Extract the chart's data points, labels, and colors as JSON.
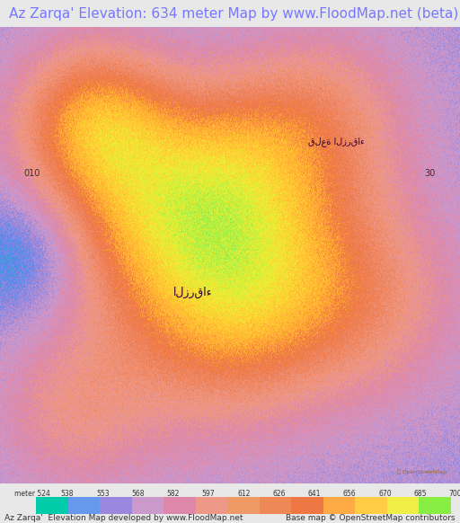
{
  "title": "Az Zarqa' Elevation: 634 meter Map by www.FloodMap.net (beta)",
  "title_color": "#7777ff",
  "title_bg": "#e8e8e8",
  "title_fontsize": 11,
  "colorbar_labels": [
    "meter 524",
    "538",
    "553",
    "568",
    "582",
    "597",
    "612",
    "626",
    "641",
    "656",
    "670",
    "685",
    "700"
  ],
  "colorbar_values": [
    524,
    538,
    553,
    568,
    582,
    597,
    612,
    626,
    641,
    656,
    670,
    685,
    700
  ],
  "colorbar_colors": [
    "#00ccaa",
    "#6699ee",
    "#9988dd",
    "#cc99cc",
    "#dd88aa",
    "#ee9988",
    "#ee9966",
    "#ee8855",
    "#ee7744",
    "#ffaa44",
    "#ffcc44",
    "#eeee44",
    "#88ee44"
  ],
  "footer_left": "Az Zarqa'  Elevation Map developed by www.FloodMap.net",
  "footer_right": "Base map © OpenStreetMap contributors",
  "footer_fontsize": 6.5,
  "map_image_bg": "#f0b090",
  "fig_width": 5.12,
  "fig_height": 5.82
}
